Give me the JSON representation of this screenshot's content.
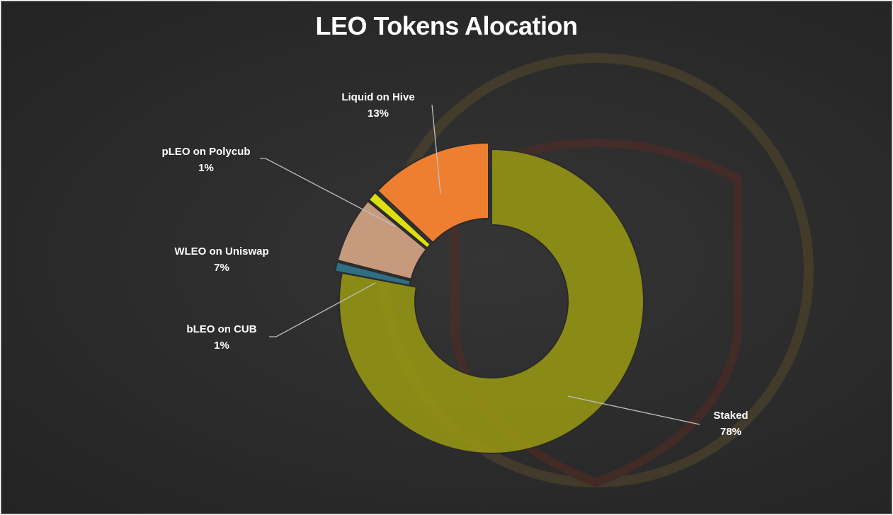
{
  "chart_data": {
    "type": "pie",
    "variant": "donut",
    "title": "LEO Tokens Alocation",
    "slices": [
      {
        "label": "Staked",
        "value": 78,
        "pct_text": "78%",
        "color": "#9a9a12",
        "exploded": false
      },
      {
        "label": "bLEO on CUB",
        "value": 1,
        "pct_text": "1%",
        "color": "#2e6f86",
        "exploded": true
      },
      {
        "label": "WLEO on Uniswap",
        "value": 7,
        "pct_text": "7%",
        "color": "#c79a7e",
        "exploded": true
      },
      {
        "label": "pLEO on Polycub",
        "value": 1,
        "pct_text": "1%",
        "color": "#dede12",
        "exploded": true
      },
      {
        "label": "Liquid on Hive",
        "value": 13,
        "pct_text": "13%",
        "color": "#ef7f30",
        "exploded": true
      }
    ]
  }
}
